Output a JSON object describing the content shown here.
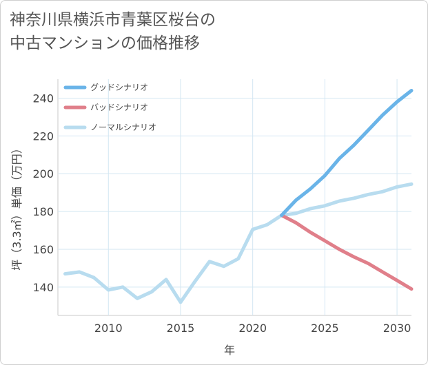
{
  "title_lines": [
    "神奈川県横浜市青葉区桜台の",
    "中古マンションの価格推移"
  ],
  "chart_data": {
    "type": "line",
    "xlabel": "年",
    "ylabel": "坪（3.3㎡）単価（万円）",
    "xlim": [
      2006.5,
      2031
    ],
    "ylim": [
      125,
      250
    ],
    "xticks": [
      2010,
      2015,
      2020,
      2025,
      2030
    ],
    "yticks": [
      140,
      160,
      180,
      200,
      220,
      240
    ],
    "grid": true,
    "legend_position": "top-left",
    "series": [
      {
        "name": "グッドシナリオ",
        "color": "#6ab4e8",
        "x": [
          2022,
          2023,
          2024,
          2025,
          2026,
          2027,
          2028,
          2029,
          2030,
          2031
        ],
        "values": [
          178,
          186,
          192,
          199,
          208,
          215,
          223,
          231,
          238,
          244
        ]
      },
      {
        "name": "バッドシナリオ",
        "color": "#e07f8a",
        "x": [
          2022,
          2023,
          2024,
          2025,
          2026,
          2027,
          2028,
          2029,
          2030,
          2031
        ],
        "values": [
          178,
          174,
          169,
          164.5,
          160,
          156,
          152.5,
          148,
          143.5,
          139
        ]
      },
      {
        "name": "ノーマルシナリオ",
        "color": "#b8dcef",
        "x": [
          2007,
          2008,
          2009,
          2010,
          2011,
          2012,
          2013,
          2014,
          2015,
          2016,
          2017,
          2018,
          2019,
          2020,
          2021,
          2022,
          2023,
          2024,
          2025,
          2026,
          2027,
          2028,
          2029,
          2030,
          2031
        ],
        "values": [
          147,
          148,
          145,
          138.5,
          140,
          134,
          137.5,
          144,
          132,
          143,
          153.5,
          151,
          155,
          170.5,
          173,
          178,
          179,
          181.5,
          183,
          185.5,
          187,
          189,
          190.5,
          193,
          194.5
        ]
      }
    ]
  }
}
